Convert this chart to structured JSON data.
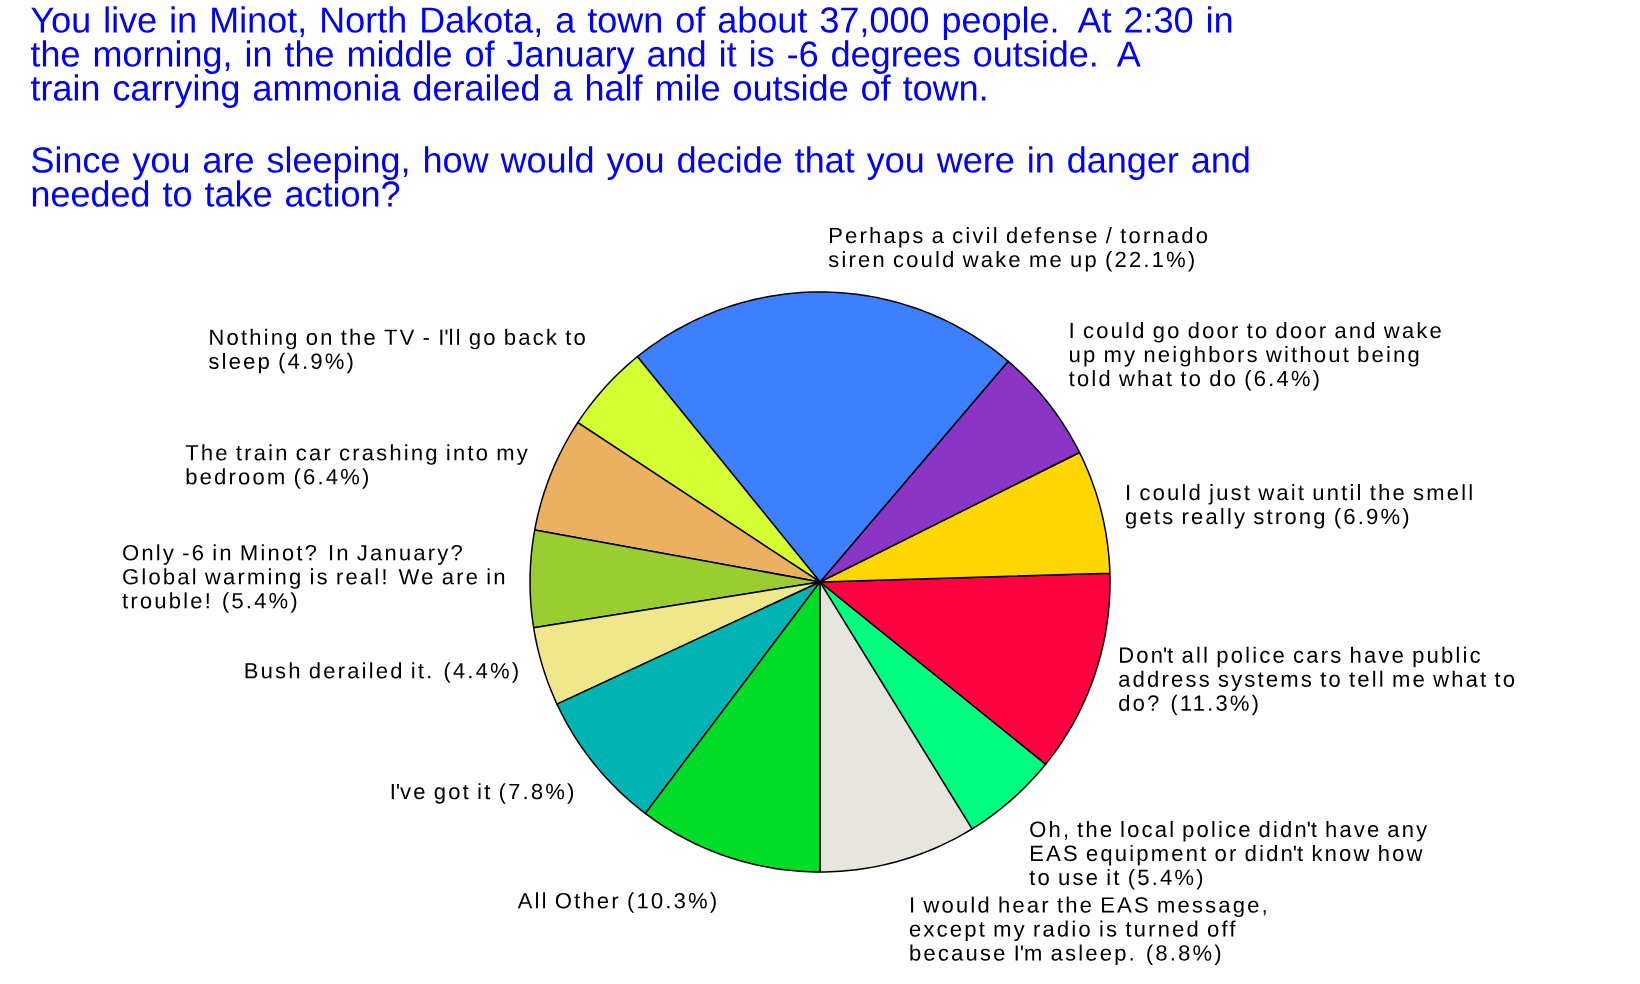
{
  "chart_data": {
    "type": "pie",
    "title": "You live in Minot, North Dakota, a town of about 37,000 people. At 2:30 in the morning, in the middle of January and it is -6 degrees outside. A train carrying ammonia derailed a half mile outside of town.",
    "subtitle": "Since you are sleeping, how would you decide that you were in danger and needed to take action?",
    "categories": [
      "I would hear the EAS message, except my radio is turned off because I'm asleep. (8.8%)",
      "Oh, the local police didn't have any EAS equipment or didn't know how to use it (5.4%)",
      "Don't all police cars have public address systems to tell me what to do? (11.3%)",
      "I could just wait until the smell gets really strong (6.9%)",
      "I could go door to door and wake up my neighbors without being told what to do (6.4%)",
      "Perhaps a civil defense / tornado siren could wake me up (22.1%)",
      "Nothing on the TV - I'll go back to sleep (4.9%)",
      "The train car crashing into my bedroom (6.4%)",
      "Only -6 in Minot? In January? Global warming is real! We are in trouble! (5.4%)",
      "Bush derailed it. (4.4%)",
      "I've got it (7.8%)",
      "All Other (10.3%)"
    ],
    "values": [
      8.8,
      5.4,
      11.3,
      6.9,
      6.4,
      22.1,
      4.9,
      6.4,
      5.4,
      4.4,
      7.8,
      10.3
    ],
    "colors": [
      "#e6e6de",
      "#00ff80",
      "#ff0040",
      "#ffd700",
      "#8b35c6",
      "#3d80ff",
      "#d4ff33",
      "#ebb060",
      "#9acd32",
      "#f0e68c",
      "#00b4b4",
      "#00dc28"
    ]
  }
}
